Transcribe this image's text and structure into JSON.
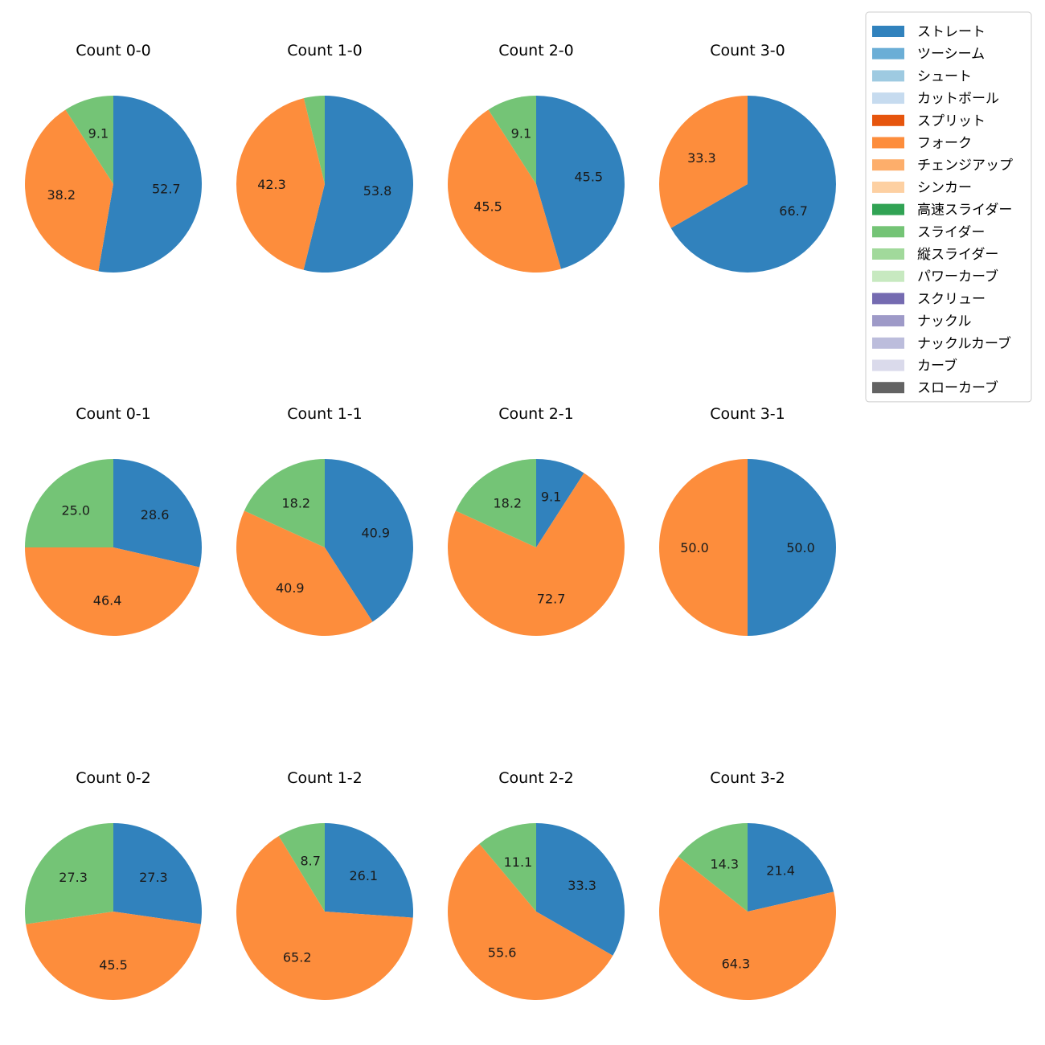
{
  "chart_data": {
    "type": "pie",
    "legend_position": "top-right",
    "pitch_types": [
      {
        "name": "ストレート",
        "color": "#3182bd"
      },
      {
        "name": "ツーシーム",
        "color": "#6baed6"
      },
      {
        "name": "シュート",
        "color": "#9ecae1"
      },
      {
        "name": "カットボール",
        "color": "#c6dbef"
      },
      {
        "name": "スプリット",
        "color": "#e6550d"
      },
      {
        "name": "フォーク",
        "color": "#fd8d3c"
      },
      {
        "name": "チェンジアップ",
        "color": "#fdae6b"
      },
      {
        "name": "シンカー",
        "color": "#fdd0a2"
      },
      {
        "name": "高速スライダー",
        "color": "#31a354"
      },
      {
        "name": "スライダー",
        "color": "#74c476"
      },
      {
        "name": "縦スライダー",
        "color": "#a1d99b"
      },
      {
        "name": "パワーカーブ",
        "color": "#c7e9c0"
      },
      {
        "name": "スクリュー",
        "color": "#756bb1"
      },
      {
        "name": "ナックル",
        "color": "#9e9ac8"
      },
      {
        "name": "ナックルカーブ",
        "color": "#bcbddc"
      },
      {
        "name": "カーブ",
        "color": "#dadaeb"
      },
      {
        "name": "スローカーブ",
        "color": "#636363"
      }
    ],
    "charts": [
      {
        "title": "Count 0-0",
        "slices": [
          {
            "type": "ストレート",
            "value": 52.7
          },
          {
            "type": "フォーク",
            "value": 38.2
          },
          {
            "type": "スライダー",
            "value": 9.1
          }
        ]
      },
      {
        "title": "Count 1-0",
        "slices": [
          {
            "type": "ストレート",
            "value": 53.8
          },
          {
            "type": "フォーク",
            "value": 42.3
          },
          {
            "type": "スライダー",
            "value": 3.8,
            "hide_label": true
          }
        ]
      },
      {
        "title": "Count 2-0",
        "slices": [
          {
            "type": "ストレート",
            "value": 45.5
          },
          {
            "type": "フォーク",
            "value": 45.5
          },
          {
            "type": "スライダー",
            "value": 9.1
          }
        ]
      },
      {
        "title": "Count 3-0",
        "slices": [
          {
            "type": "ストレート",
            "value": 66.7
          },
          {
            "type": "フォーク",
            "value": 33.3
          }
        ]
      },
      {
        "title": "Count 0-1",
        "slices": [
          {
            "type": "ストレート",
            "value": 28.6
          },
          {
            "type": "フォーク",
            "value": 46.4
          },
          {
            "type": "スライダー",
            "value": 25.0
          }
        ]
      },
      {
        "title": "Count 1-1",
        "slices": [
          {
            "type": "ストレート",
            "value": 40.9
          },
          {
            "type": "フォーク",
            "value": 40.9
          },
          {
            "type": "スライダー",
            "value": 18.2
          }
        ]
      },
      {
        "title": "Count 2-1",
        "slices": [
          {
            "type": "ストレート",
            "value": 9.1
          },
          {
            "type": "フォーク",
            "value": 72.7
          },
          {
            "type": "スライダー",
            "value": 18.2
          }
        ]
      },
      {
        "title": "Count 3-1",
        "slices": [
          {
            "type": "ストレート",
            "value": 50.0
          },
          {
            "type": "フォーク",
            "value": 50.0
          }
        ]
      },
      {
        "title": "Count 0-2",
        "slices": [
          {
            "type": "ストレート",
            "value": 27.3
          },
          {
            "type": "フォーク",
            "value": 45.5
          },
          {
            "type": "スライダー",
            "value": 27.3
          }
        ]
      },
      {
        "title": "Count 1-2",
        "slices": [
          {
            "type": "ストレート",
            "value": 26.1
          },
          {
            "type": "フォーク",
            "value": 65.2
          },
          {
            "type": "スライダー",
            "value": 8.7
          }
        ]
      },
      {
        "title": "Count 2-2",
        "slices": [
          {
            "type": "ストレート",
            "value": 33.3
          },
          {
            "type": "フォーク",
            "value": 55.6
          },
          {
            "type": "スライダー",
            "value": 11.1
          }
        ]
      },
      {
        "title": "Count 3-2",
        "slices": [
          {
            "type": "ストレート",
            "value": 21.4
          },
          {
            "type": "フォーク",
            "value": 64.3
          },
          {
            "type": "スライダー",
            "value": 14.3
          }
        ]
      }
    ]
  }
}
